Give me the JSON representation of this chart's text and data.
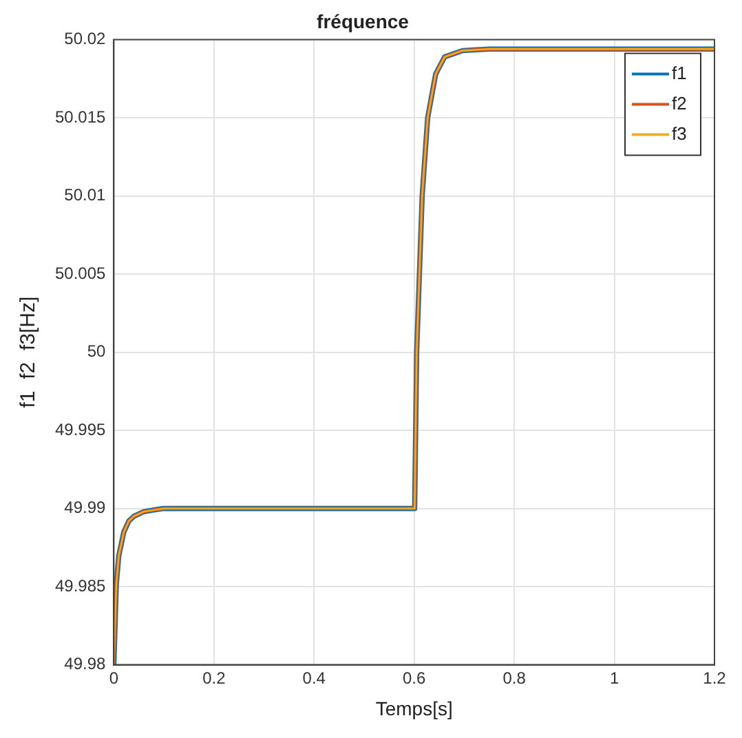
{
  "chart_data": {
    "type": "line",
    "title": "fréquence",
    "xlabel": "Temps[s]",
    "ylabel": "f1  f2  f3[Hz]",
    "x": [
      0,
      0.005,
      0.01,
      0.02,
      0.03,
      0.04,
      0.06,
      0.08,
      0.1,
      0.6,
      0.601,
      0.605,
      0.616,
      0.627,
      0.643,
      0.661,
      0.697,
      0.75,
      1.2
    ],
    "series": [
      {
        "name": "f1",
        "color": "#0072bd",
        "values": [
          49.98,
          49.9852,
          49.987,
          49.9885,
          49.9892,
          49.9895,
          49.9898,
          49.9899,
          49.99,
          49.99,
          49.99,
          50,
          50.01,
          50.015,
          50.0178,
          50.0189,
          50.0193,
          50.0194,
          50.0194
        ]
      },
      {
        "name": "f2",
        "color": "#d95319",
        "values": [
          49.98,
          49.9852,
          49.987,
          49.9885,
          49.9892,
          49.9895,
          49.9898,
          49.9899,
          49.99,
          49.99,
          49.99,
          50,
          50.01,
          50.015,
          50.0178,
          50.0189,
          50.0193,
          50.0194,
          50.0194
        ]
      },
      {
        "name": "f3",
        "color": "#edb120",
        "values": [
          49.98,
          49.9852,
          49.987,
          49.9885,
          49.9892,
          49.9895,
          49.9898,
          49.9899,
          49.99,
          49.99,
          49.99,
          50,
          50.01,
          50.015,
          50.0178,
          50.0189,
          50.0193,
          50.0194,
          50.0194
        ]
      }
    ],
    "xlim": [
      0,
      1.2
    ],
    "xticks": [
      0,
      0.2,
      0.4,
      0.6,
      0.8,
      1,
      1.2
    ],
    "ylim": [
      49.98,
      50.02
    ],
    "yticks": [
      49.98,
      49.985,
      49.99,
      49.995,
      50,
      50.005,
      50.01,
      50.015,
      50.02
    ],
    "grid": true,
    "legend": "top right",
    "marker": "none",
    "line_style": "solid"
  }
}
